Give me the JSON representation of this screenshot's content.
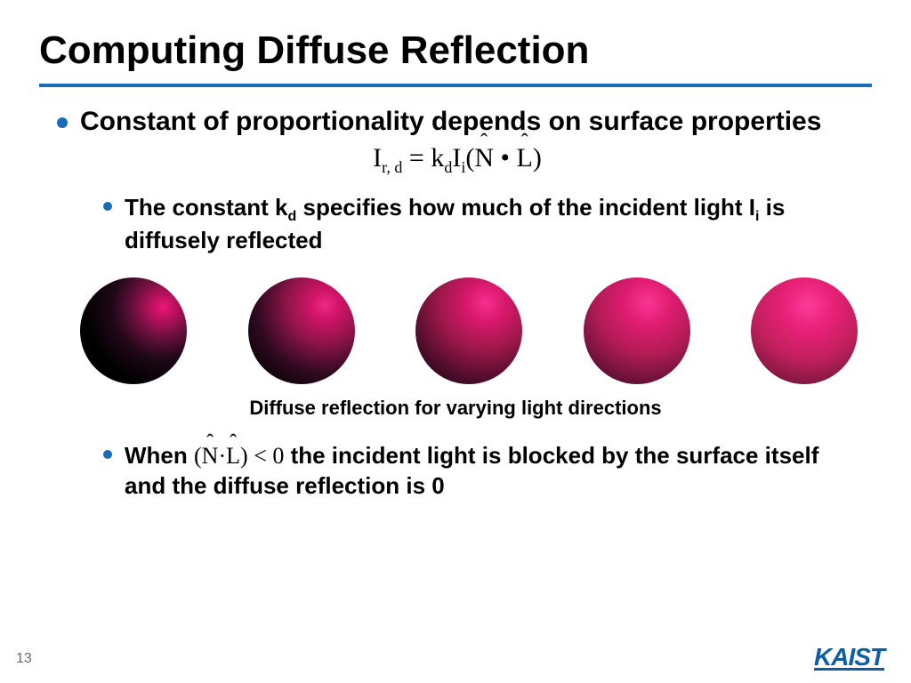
{
  "title": "Computing Diffuse Reflection",
  "bullet1": "Constant of proportionality depends on surface properties",
  "formula": {
    "lhs_var": "I",
    "lhs_sub": "r, d",
    "eq": " = ",
    "k_var": "k",
    "k_sub": "d",
    "i_var": "I",
    "i_sub": "i",
    "open": "(",
    "n": "N",
    "dot": " • ",
    "l": "L",
    "close": ")"
  },
  "sub1_pre": "The constant k",
  "sub1_ksub": "d",
  "sub1_mid": " specifies how much of the incident light I",
  "sub1_isub": "i",
  "sub1_post": " is diffusely reflected",
  "spheres": [
    {
      "gradient": "radial-gradient(circle at 78% 28%, #e8187a 0%, #c01060 10%, #701040 25%, #200818 45%, #000000 70%)"
    },
    {
      "gradient": "radial-gradient(circle at 72% 26%, #f02886 0%, #d01468 13%, #901448 34%, #300a20 62%, #000000 92%)"
    },
    {
      "gradient": "radial-gradient(circle at 66% 24%, #f83090 0%, #d8186c 18%, #a0184c 42%, #480c28 74%, #100408 100%)"
    },
    {
      "gradient": "radial-gradient(circle at 60% 24%, #fa3694 0%, #e01c72 22%, #b01c54 50%, #5c1034 82%, #20060e 100%)"
    },
    {
      "gradient": "radial-gradient(circle at 54% 26%, #fc3c98 0%, #e82078 26%, #c0205c 56%, #70143a 88%, #300816 100%)"
    }
  ],
  "caption": "Diffuse reflection for varying light directions",
  "sub2_pre": "When   ",
  "formula2": {
    "open": "(",
    "n": "N",
    "dot": "·",
    "l": "L",
    "close": ")",
    "lt": " < ",
    "zero": "0"
  },
  "sub2_post": "   the incident light is blocked by the surface itself and the diffuse reflection is 0",
  "page_num": "13",
  "logo": "KAIST",
  "colors": {
    "accent": "#1a6bb8",
    "logo_color": "#0a5da8",
    "sphere_base": "#d91e75"
  }
}
